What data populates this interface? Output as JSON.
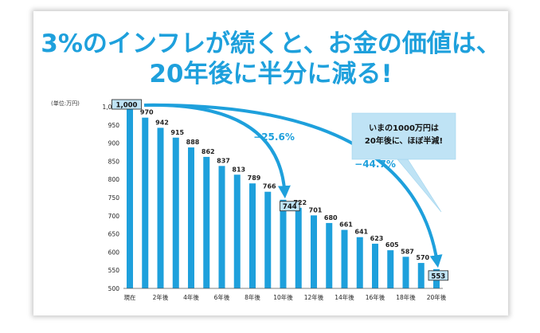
{
  "page": {
    "title_line1": "3%のインフレが続くと、お金の価値は、",
    "title_line2": "20年後に半分に減る!"
  },
  "colors": {
    "accent": "#1ea0dc",
    "bar": "#1ea0dc",
    "highlight_box": "#bfe3f5",
    "text_dark": "#222222"
  },
  "chart_data": {
    "type": "bar",
    "unit_label": "(単位:万円)",
    "categories": [
      "現在",
      "",
      "2年後",
      "",
      "4年後",
      "",
      "6年後",
      "",
      "8年後",
      "",
      "10年後",
      "",
      "12年後",
      "",
      "14年後",
      "",
      "16年後",
      "",
      "18年後",
      "",
      "20年後"
    ],
    "values": [
      1000,
      970,
      942,
      915,
      888,
      862,
      837,
      813,
      789,
      766,
      744,
      722,
      701,
      680,
      661,
      641,
      623,
      605,
      587,
      570,
      553
    ],
    "value_labels": [
      "1,000",
      "970",
      "942",
      "915",
      "888",
      "862",
      "837",
      "813",
      "789",
      "766",
      "744",
      "722",
      "701",
      "680",
      "661",
      "641",
      "623",
      "605",
      "587",
      "570",
      "553"
    ],
    "highlighted_indices": [
      0,
      10,
      20
    ],
    "ylim": [
      500,
      1000
    ],
    "yticks": [
      500,
      550,
      600,
      650,
      700,
      750,
      800,
      850,
      900,
      950,
      1000
    ],
    "ytick_labels": [
      "500",
      "550",
      "600",
      "650",
      "700",
      "750",
      "800",
      "850",
      "900",
      "950",
      "1,000"
    ],
    "annotations": [
      {
        "text": "−25.6%",
        "from_index": 0,
        "to_index": 10
      },
      {
        "text": "−44.7%",
        "from_index": 0,
        "to_index": 20
      }
    ],
    "callout": {
      "line1": "いまの1000万円は",
      "line2": "20年後に、ほぼ半減!"
    },
    "grid": false
  }
}
